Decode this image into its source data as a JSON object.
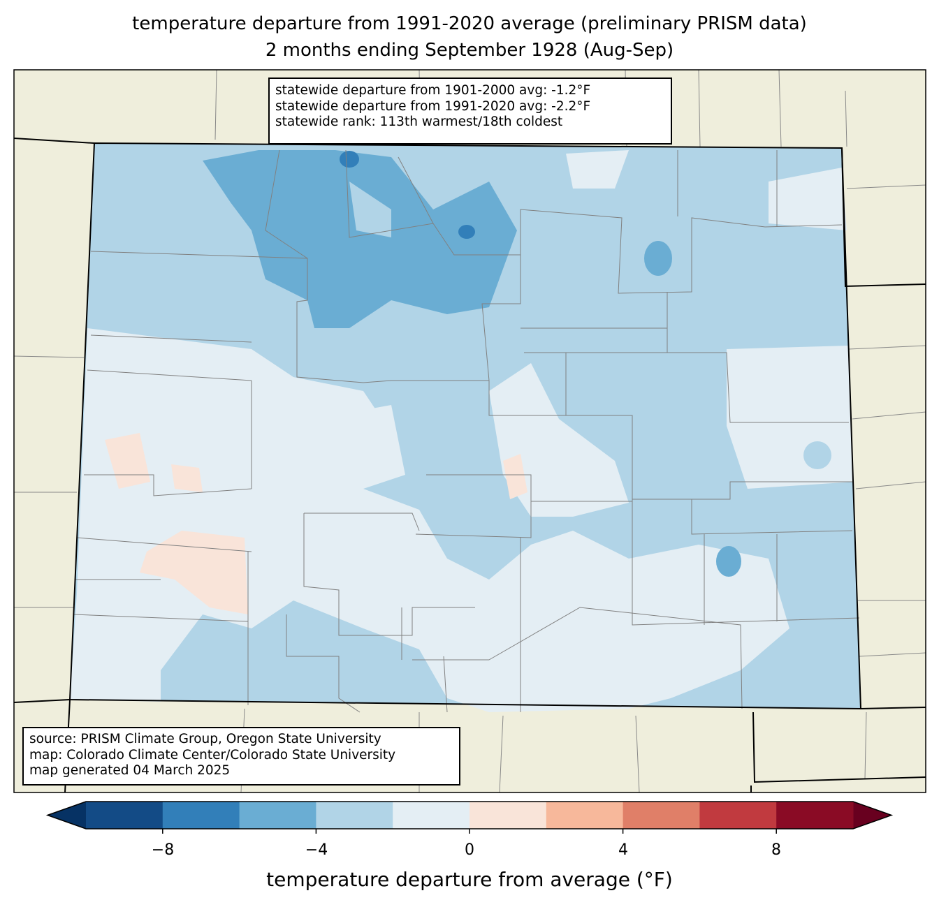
{
  "title": {
    "line1": "temperature departure from 1991-2020 average (preliminary PRISM data)",
    "line2": "2 months ending September 1928 (Aug-Sep)"
  },
  "stats_box": {
    "line1": "statewide departure from 1901-2000 avg: -1.2°F",
    "line2": "statewide departure from 1991-2020 avg: -2.2°F",
    "line3": "statewide rank: 113th warmest/18th coldest"
  },
  "source_box": {
    "line1": "source: PRISM Climate Group, Oregon State University",
    "line2": "map: Colorado Climate Center/Colorado State University",
    "line3": "map generated 04 March 2025"
  },
  "colorbar": {
    "label": "temperature departure from average (°F)",
    "bounds": [
      -10,
      -8,
      -6,
      -4,
      -2,
      0,
      2,
      4,
      6,
      8,
      10
    ],
    "colors": [
      "#134b86",
      "#327fb9",
      "#6aadd3",
      "#b1d4e7",
      "#e4eef4",
      "#f9e4d9",
      "#f7b89b",
      "#e07f68",
      "#c13a3f",
      "#8a0b25"
    ],
    "extend_low_color": "#063264",
    "extend_high_color": "#68001f",
    "ticks": [
      "−8",
      "−4",
      "0",
      "4",
      "8"
    ]
  },
  "colors": {
    "land": "#efeedc",
    "state_border": "#000000",
    "county_border": "#808080"
  }
}
